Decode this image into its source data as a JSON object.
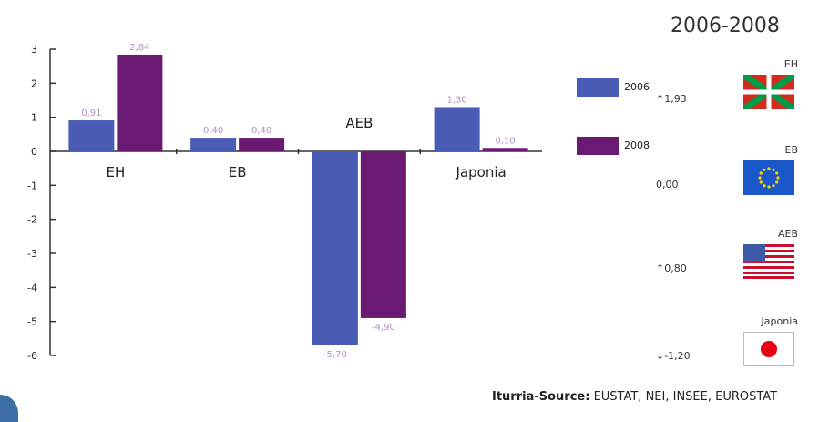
{
  "chart_data": {
    "type": "bar",
    "categories": [
      "EH",
      "EB",
      "AEB",
      "Japonia"
    ],
    "series": [
      {
        "name": "2006",
        "values": [
          0.91,
          0.4,
          -5.7,
          1.3
        ],
        "labels": [
          "0,91",
          "0,40",
          "-5,70",
          "1,30"
        ],
        "color": "#4a5cb5"
      },
      {
        "name": "2008",
        "values": [
          2.84,
          0.4,
          -4.9,
          0.1
        ],
        "labels": [
          "2,84",
          "0,40",
          "-4,90",
          "0,10"
        ],
        "color": "#6a1a72"
      }
    ],
    "ylim": [
      -6,
      3
    ],
    "yticks": [
      "3",
      "2",
      "1",
      "0",
      "-1",
      "-2",
      "-3",
      "-4",
      "-5",
      "-6"
    ],
    "data_label_color": "#b090c0",
    "grid": false
  },
  "panel_title": "2006-2008",
  "legend": [
    {
      "label": "2006",
      "color": "#4a5cb5"
    },
    {
      "label": "2008",
      "color": "#6a1a72"
    }
  ],
  "regions": [
    {
      "name": "EH",
      "value": "↑1,93",
      "flag": "ikurrina-flag-icon"
    },
    {
      "name": "EB",
      "value": "0,00",
      "flag": "eu-flag-icon"
    },
    {
      "name": "AEB",
      "value": "↑0,80",
      "flag": "us-flag-icon"
    },
    {
      "name": "Japonia",
      "value": "↓-1,20",
      "flag": "japan-flag-icon"
    }
  ],
  "source": {
    "prefix": "Iturria-Source:",
    "text": " EUSTAT, NEI, INSEE, EUROSTAT"
  },
  "colors": {
    "accent_band": "#3a6ea5"
  }
}
